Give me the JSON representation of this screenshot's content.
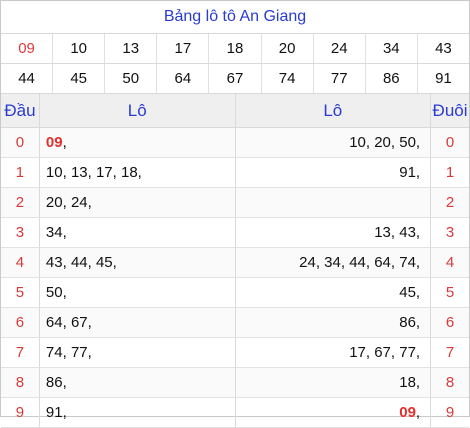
{
  "title": "Bảng lô tô An Giang",
  "numbers_row1": [
    "09",
    "10",
    "13",
    "17",
    "18",
    "20",
    "24",
    "34",
    "43"
  ],
  "numbers_row2": [
    "44",
    "45",
    "50",
    "64",
    "67",
    "74",
    "77",
    "86",
    "91"
  ],
  "headers": {
    "dau": "Đầu",
    "lo_left": "Lô",
    "lo_right": "Lô",
    "duoi": "Đuôi"
  },
  "rows": [
    {
      "dau": "0",
      "left_highlight": "09",
      "left": ",",
      "right": "10, 20, 50,",
      "right_highlight": "",
      "duoi": "0"
    },
    {
      "dau": "1",
      "left_highlight": "",
      "left": "10, 13, 17, 18,",
      "right": "91,",
      "right_highlight": "",
      "duoi": "1"
    },
    {
      "dau": "2",
      "left_highlight": "",
      "left": "20, 24,",
      "right": "",
      "right_highlight": "",
      "duoi": "2"
    },
    {
      "dau": "3",
      "left_highlight": "",
      "left": "34,",
      "right": "13, 43,",
      "right_highlight": "",
      "duoi": "3"
    },
    {
      "dau": "4",
      "left_highlight": "",
      "left": "43, 44, 45,",
      "right": "24, 34, 44, 64, 74,",
      "right_highlight": "",
      "duoi": "4"
    },
    {
      "dau": "5",
      "left_highlight": "",
      "left": "50,",
      "right": "45,",
      "right_highlight": "",
      "duoi": "5"
    },
    {
      "dau": "6",
      "left_highlight": "",
      "left": "64, 67,",
      "right": "86,",
      "right_highlight": "",
      "duoi": "6"
    },
    {
      "dau": "7",
      "left_highlight": "",
      "left": "74, 77,",
      "right": "17, 67, 77,",
      "right_highlight": "",
      "duoi": "7"
    },
    {
      "dau": "8",
      "left_highlight": "",
      "left": "86,",
      "right": "18,",
      "right_highlight": "",
      "duoi": "8"
    },
    {
      "dau": "9",
      "left_highlight": "",
      "left": "91,",
      "right": ",",
      "right_highlight": "09",
      "duoi": "9"
    }
  ],
  "colors": {
    "title": "#2a3bd0",
    "red": "#e03a3a",
    "header_bg": "#efefef"
  }
}
